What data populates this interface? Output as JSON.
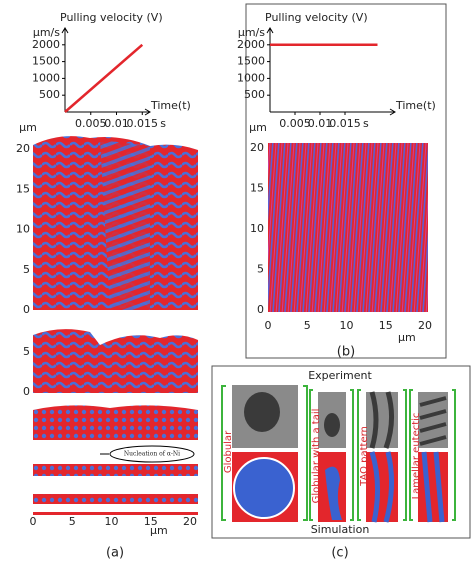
{
  "chart_data": [
    {
      "type": "line",
      "title": "Pulling velocity (V)",
      "y_unit": "µm/s",
      "x_label": "Time(t)",
      "x_unit": "s",
      "x": [
        0,
        0.015
      ],
      "series": [
        {
          "color": "#e3262c",
          "values": [
            0,
            2000
          ]
        }
      ],
      "xlim": [
        0,
        0.0165
      ],
      "ylim": [
        0,
        2500
      ],
      "xticks": [
        0.005,
        0.01,
        0.015
      ],
      "yticks": [
        500,
        1000,
        1500,
        2000
      ]
    },
    {
      "type": "line",
      "title": "Pulling velocity (V)",
      "y_unit": "µm/s",
      "x_label": "Time(t)",
      "x_unit": "s",
      "x": [
        0,
        0.0215
      ],
      "series": [
        {
          "color": "#e3262c",
          "values": [
            2000,
            2000
          ]
        }
      ],
      "xlim": [
        0,
        0.025
      ],
      "ylim": [
        0,
        2500
      ],
      "xticks": [
        0.005,
        0.01,
        0.015
      ],
      "yticks": [
        500,
        1000,
        1500,
        2000
      ]
    }
  ],
  "panel_a": {
    "label": "(a)",
    "unit": "µm",
    "main_yticks": [
      0,
      5,
      10,
      15,
      20
    ],
    "second_yticks": [
      0,
      5
    ],
    "xticks": [
      0,
      5,
      10,
      15,
      20
    ],
    "x_unit": "µm",
    "annotation": "Nucleation of α-Ni"
  },
  "panel_b": {
    "label": "(b)",
    "y_unit": "µm",
    "yticks": [
      0,
      5,
      10,
      15,
      20
    ],
    "xticks": [
      0,
      5,
      10,
      15,
      20
    ],
    "x_unit": "µm"
  },
  "panel_c": {
    "label": "(c)",
    "top": "Experiment",
    "bottom": "Simulation",
    "columns": [
      "Globular",
      "Globular with a tail",
      "TAO pattern",
      "Lamellar eutectic"
    ]
  }
}
